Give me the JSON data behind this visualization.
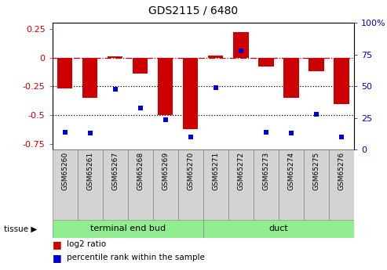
{
  "title": "GDS2115 / 6480",
  "samples": [
    "GSM65260",
    "GSM65261",
    "GSM65267",
    "GSM65268",
    "GSM65269",
    "GSM65270",
    "GSM65271",
    "GSM65272",
    "GSM65273",
    "GSM65274",
    "GSM65275",
    "GSM65276"
  ],
  "log2_ratio": [
    -0.27,
    -0.35,
    0.01,
    -0.14,
    -0.5,
    -0.62,
    0.02,
    0.22,
    -0.08,
    -0.35,
    -0.12,
    -0.4
  ],
  "percentile_rank": [
    14,
    13,
    48,
    33,
    24,
    10,
    49,
    78,
    14,
    13,
    28,
    10
  ],
  "group_labels": [
    "terminal end bud",
    "duct"
  ],
  "group_ranges": [
    [
      0,
      6
    ],
    [
      6,
      12
    ]
  ],
  "bar_color": "#CC0000",
  "dot_color": "#0000CC",
  "ylim_left": [
    -0.8,
    0.3
  ],
  "ylim_right": [
    0,
    100
  ],
  "yticks_left": [
    0.25,
    0.0,
    -0.25,
    -0.5,
    -0.75
  ],
  "yticks_right": [
    100,
    75,
    50,
    25,
    0
  ],
  "hline_dashed": 0.0,
  "hline_dotted1": -0.25,
  "hline_dotted2": -0.5,
  "tissue_label": "tissue",
  "legend_ratio_label": "log2 ratio",
  "legend_pct_label": "percentile rank within the sample",
  "green_color": "#90EE90",
  "gray_color": "#D3D3D3"
}
